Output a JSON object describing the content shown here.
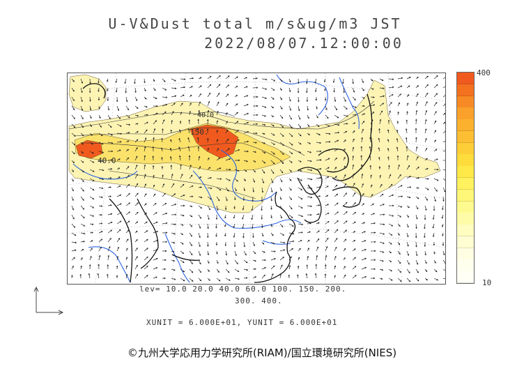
{
  "title_line1": "U-V&Dust total m/s&ug/m3 JST",
  "title_line2": "2022/08/07.12:00:00",
  "colorbar": {
    "max_label": "400",
    "min_label": "10",
    "colors": [
      "#f05a1e",
      "#f4711f",
      "#f78a24",
      "#f9a12a",
      "#fbb12e",
      "#fcbf33",
      "#fdce37",
      "#fedc3b",
      "#ffe948",
      "#fff25e",
      "#fff777",
      "#fffa90",
      "#fffca8",
      "#fffdbf",
      "#fffed3",
      "#fffee3",
      "#ffffee",
      "#fffff5"
    ]
  },
  "contour_labels": [
    "40.0",
    "150.",
    "40.0"
  ],
  "levels_line1": "lev= 10.0 20.0 40.0 60.0 100. 150. 200.",
  "levels_line2": "300. 400.",
  "units_line": "XUNIT = 6.000E+01, YUNIT = 6.000E+01",
  "copyright": "©九州大学応用力学研究所(RIAM)/国立環境研究所(NIES)",
  "colors": {
    "dust_light": "#fdf4b4",
    "dust_mid": "#fbe26b",
    "dust_high": "#f05a1e",
    "coast": "#111111",
    "river": "#2b63e0"
  }
}
